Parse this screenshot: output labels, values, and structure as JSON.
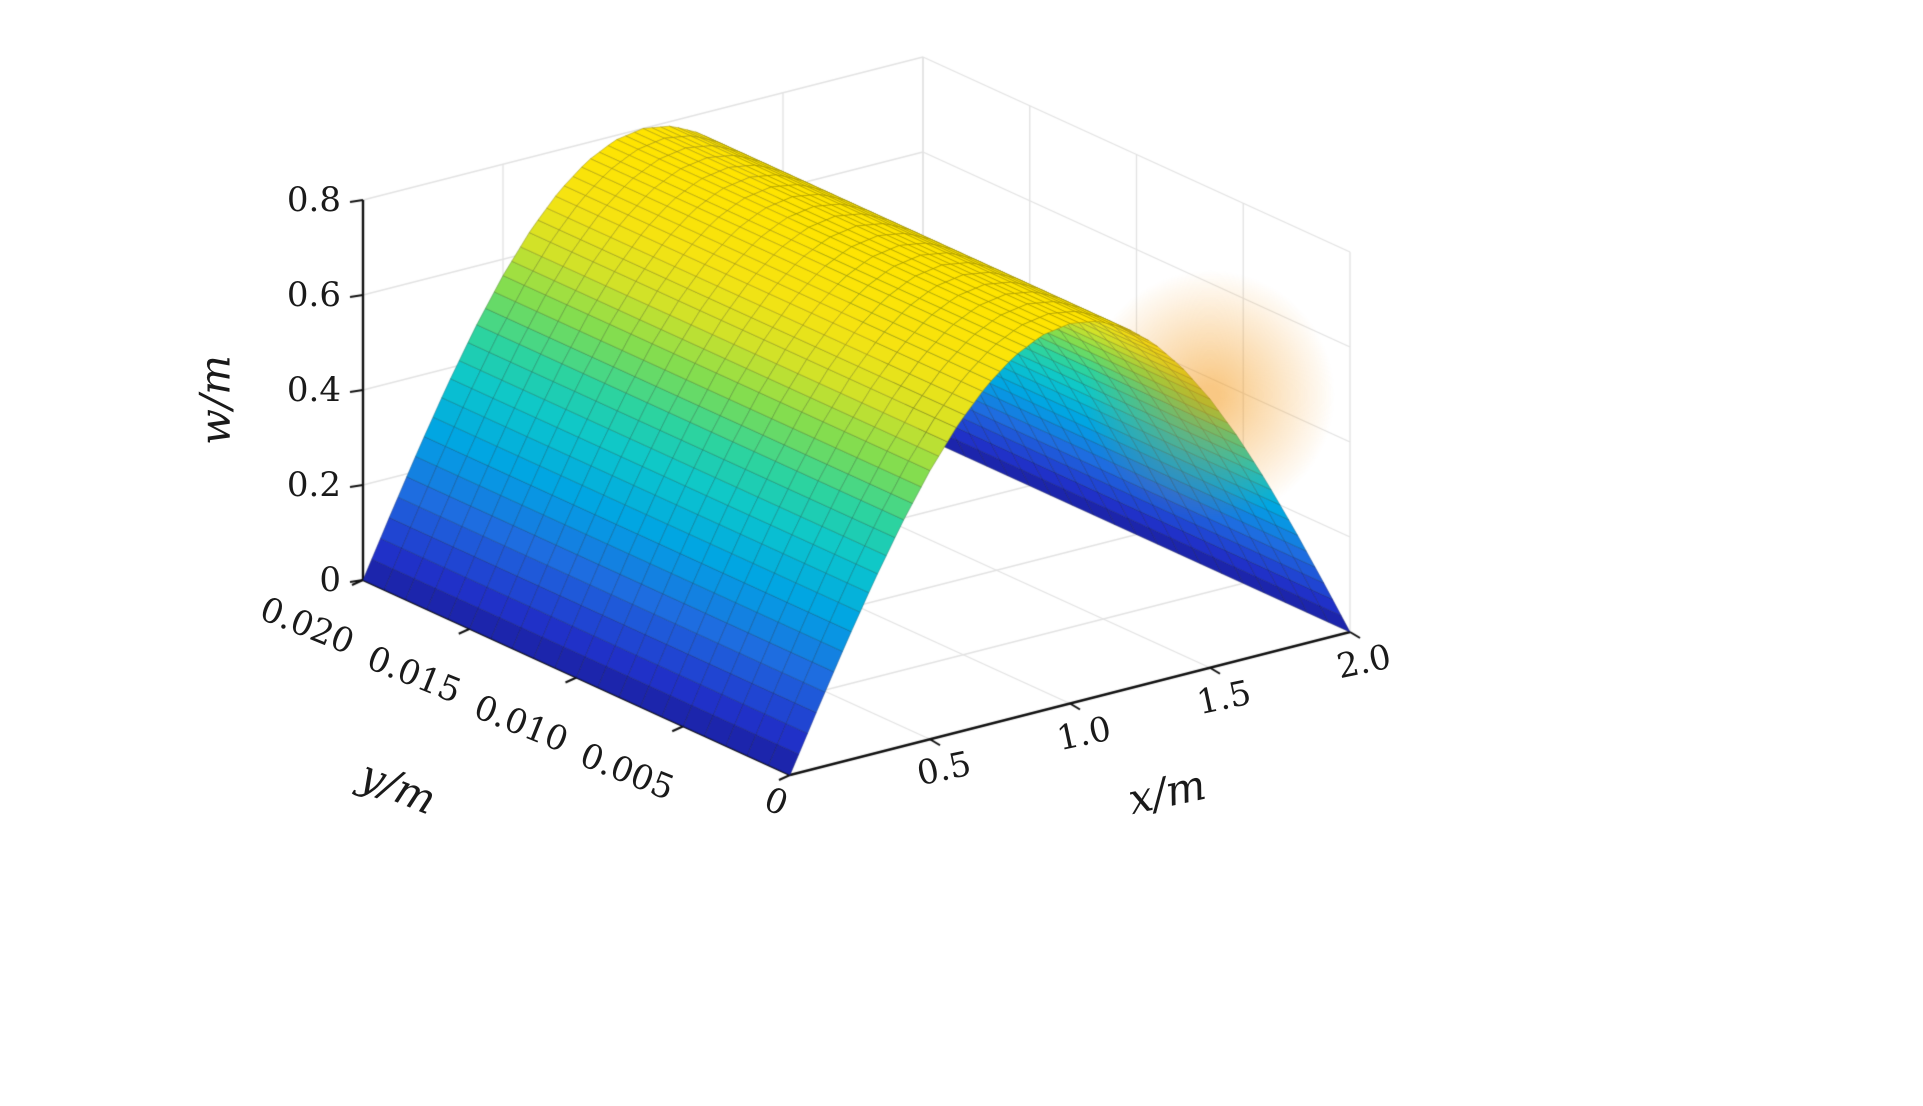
{
  "chart_data": {
    "type": "surface",
    "title": "",
    "xlabel": "x/m",
    "ylabel": "y/m",
    "zlabel": "w/m",
    "x_range": [
      0,
      2.0
    ],
    "y_range": [
      0,
      0.02
    ],
    "z_range": [
      0,
      0.8
    ],
    "x_ticks": [
      "0",
      "0.5",
      "1.0",
      "1.5",
      "2.0"
    ],
    "y_ticks": [
      "0",
      "0.005",
      "0.010",
      "0.015",
      "0.020"
    ],
    "z_ticks": [
      "0",
      "0.2",
      "0.4",
      "0.6",
      "0.8"
    ],
    "grid": true,
    "legend": null,
    "view": {
      "azimuth": -37.5,
      "elevation": 30
    },
    "surface": {
      "description": "Half-sine bending mode shape: w(x,y) = 0.8*sin(pi*x/2), uniform along y",
      "amplitude": 0.8,
      "x_samples": [
        0,
        0.1,
        0.2,
        0.3,
        0.4,
        0.5,
        0.6,
        0.7,
        0.8,
        0.9,
        1.0,
        1.1,
        1.2,
        1.3,
        1.4,
        1.5,
        1.6,
        1.7,
        1.8,
        1.9,
        2.0
      ],
      "w_values": [
        0,
        0.1251,
        0.2472,
        0.3633,
        0.4702,
        0.5657,
        0.6472,
        0.7128,
        0.7608,
        0.7902,
        0.8,
        0.7902,
        0.7608,
        0.7128,
        0.6472,
        0.5657,
        0.4702,
        0.3633,
        0.2472,
        0.1251,
        0
      ],
      "grid": {
        "nx": 64,
        "ny": 20
      }
    },
    "colormap": {
      "name": "parula-like",
      "stops": [
        [
          0.0,
          "#1a1f9e"
        ],
        [
          0.08,
          "#2133cc"
        ],
        [
          0.22,
          "#1e6ee0"
        ],
        [
          0.35,
          "#00a4e4"
        ],
        [
          0.48,
          "#0cc6cc"
        ],
        [
          0.58,
          "#2ed49e"
        ],
        [
          0.68,
          "#7ddc52"
        ],
        [
          0.78,
          "#cfe22a"
        ],
        [
          0.88,
          "#f5e312"
        ],
        [
          1.0,
          "#ffe400"
        ]
      ]
    },
    "style": {
      "background": "#ffffff",
      "axis_color": "#111111",
      "grid_color": "#e2e2e2",
      "mesh_line_tone": "darkened-surface",
      "peak_highlight": "#f3920a"
    }
  }
}
